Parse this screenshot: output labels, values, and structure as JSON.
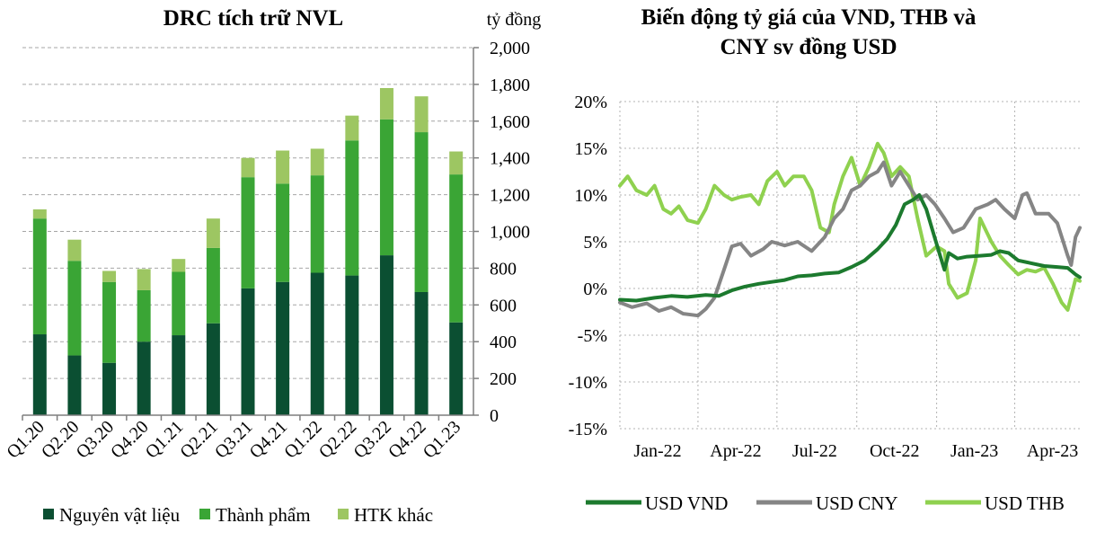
{
  "chart_data": [
    {
      "type": "bar",
      "stacked": true,
      "title": "DRC tích trữ NVL",
      "unit_label": "tỷ đồng",
      "categories": [
        "Q1.20",
        "Q2.20",
        "Q3.20",
        "Q4.20",
        "Q1.21",
        "Q2.21",
        "Q3.21",
        "Q4.21",
        "Q1.22",
        "Q2.22",
        "Q3.22",
        "Q4.22",
        "Q1.23"
      ],
      "series": [
        {
          "name": "Nguyên vật liệu",
          "color": "#0b4f32",
          "values": [
            440,
            325,
            285,
            400,
            435,
            500,
            690,
            725,
            775,
            760,
            870,
            670,
            505
          ]
        },
        {
          "name": "Thành phẩm",
          "color": "#3aa535",
          "values": [
            630,
            515,
            440,
            280,
            345,
            410,
            605,
            535,
            530,
            735,
            740,
            870,
            805
          ]
        },
        {
          "name": "HTK khác",
          "color": "#9dc662",
          "values": [
            50,
            115,
            60,
            115,
            70,
            160,
            105,
            180,
            145,
            135,
            170,
            195,
            125
          ]
        }
      ],
      "ylim": [
        0,
        2000
      ],
      "yticks": [
        "0",
        "200",
        "400",
        "600",
        "800",
        "1,000",
        "1,200",
        "1,400",
        "1,600",
        "1,800",
        "2,000"
      ],
      "grid": true,
      "legend_position": "bottom"
    },
    {
      "type": "line",
      "title_lines": [
        "Biến động tỷ giá của VND, THB và",
        "CNY sv đồng USD"
      ],
      "x_range": [
        "2022-01-01",
        "2023-06-15"
      ],
      "xtick_labels": [
        "Jan-22",
        "Apr-22",
        "Jul-22",
        "Oct-22",
        "Jan-23",
        "Apr-23"
      ],
      "xtick_dates": [
        "2022-01-01",
        "2022-04-01",
        "2022-07-01",
        "2022-10-01",
        "2023-01-01",
        "2023-04-01"
      ],
      "ylim": [
        -15,
        20
      ],
      "yticks": [
        "-15%",
        "-10%",
        "-5%",
        "0%",
        "5%",
        "10%",
        "15%",
        "20%"
      ],
      "grid": true,
      "legend_position": "bottom",
      "series": [
        {
          "name": "USD VND",
          "color": "#1c7a2e",
          "points": [
            [
              "2022-01-01",
              -1.2
            ],
            [
              "2022-01-20",
              -1.3
            ],
            [
              "2022-02-10",
              -1.0
            ],
            [
              "2022-03-01",
              -0.8
            ],
            [
              "2022-03-20",
              -0.9
            ],
            [
              "2022-04-10",
              -0.7
            ],
            [
              "2022-04-25",
              -0.8
            ],
            [
              "2022-05-10",
              -0.2
            ],
            [
              "2022-05-25",
              0.2
            ],
            [
              "2022-06-10",
              0.5
            ],
            [
              "2022-06-25",
              0.7
            ],
            [
              "2022-07-10",
              0.9
            ],
            [
              "2022-07-25",
              1.3
            ],
            [
              "2022-08-10",
              1.4
            ],
            [
              "2022-08-25",
              1.6
            ],
            [
              "2022-09-10",
              1.7
            ],
            [
              "2022-09-25",
              2.3
            ],
            [
              "2022-10-10",
              3.0
            ],
            [
              "2022-10-25",
              4.2
            ],
            [
              "2022-11-05",
              5.3
            ],
            [
              "2022-11-15",
              6.8
            ],
            [
              "2022-11-25",
              9.0
            ],
            [
              "2022-12-05",
              9.5
            ],
            [
              "2022-12-12",
              10.0
            ],
            [
              "2022-12-20",
              8.5
            ],
            [
              "2022-12-28",
              6.0
            ],
            [
              "2023-01-05",
              3.5
            ],
            [
              "2023-01-10",
              2.0
            ],
            [
              "2023-01-15",
              3.8
            ],
            [
              "2023-01-25",
              3.2
            ],
            [
              "2023-02-05",
              3.4
            ],
            [
              "2023-02-20",
              3.5
            ],
            [
              "2023-03-05",
              3.6
            ],
            [
              "2023-03-15",
              4.0
            ],
            [
              "2023-03-25",
              3.8
            ],
            [
              "2023-04-05",
              3.0
            ],
            [
              "2023-04-20",
              2.7
            ],
            [
              "2023-05-05",
              2.4
            ],
            [
              "2023-05-20",
              2.3
            ],
            [
              "2023-06-01",
              2.2
            ],
            [
              "2023-06-10",
              1.5
            ],
            [
              "2023-06-15",
              1.2
            ]
          ]
        },
        {
          "name": "USD CNY",
          "color": "#858585",
          "points": [
            [
              "2022-01-01",
              -1.5
            ],
            [
              "2022-01-15",
              -2.0
            ],
            [
              "2022-02-01",
              -1.6
            ],
            [
              "2022-02-15",
              -2.4
            ],
            [
              "2022-03-01",
              -2.0
            ],
            [
              "2022-03-15",
              -2.7
            ],
            [
              "2022-04-01",
              -2.9
            ],
            [
              "2022-04-10",
              -2.2
            ],
            [
              "2022-04-20",
              -1.0
            ],
            [
              "2022-05-01",
              2.0
            ],
            [
              "2022-05-10",
              4.5
            ],
            [
              "2022-05-20",
              4.8
            ],
            [
              "2022-06-01",
              3.5
            ],
            [
              "2022-06-15",
              4.2
            ],
            [
              "2022-06-25",
              5.0
            ],
            [
              "2022-07-10",
              4.6
            ],
            [
              "2022-07-25",
              5.0
            ],
            [
              "2022-08-10",
              4.0
            ],
            [
              "2022-08-25",
              5.5
            ],
            [
              "2022-09-05",
              7.5
            ],
            [
              "2022-09-15",
              8.5
            ],
            [
              "2022-09-25",
              10.5
            ],
            [
              "2022-10-05",
              11.0
            ],
            [
              "2022-10-15",
              12.0
            ],
            [
              "2022-10-25",
              12.5
            ],
            [
              "2022-11-01",
              13.5
            ],
            [
              "2022-11-10",
              11.0
            ],
            [
              "2022-11-20",
              12.5
            ],
            [
              "2022-11-30",
              11.0
            ],
            [
              "2022-12-10",
              9.5
            ],
            [
              "2022-12-20",
              10.0
            ],
            [
              "2022-12-30",
              9.0
            ],
            [
              "2023-01-10",
              7.5
            ],
            [
              "2023-01-20",
              6.0
            ],
            [
              "2023-02-01",
              6.5
            ],
            [
              "2023-02-15",
              8.5
            ],
            [
              "2023-03-01",
              9.0
            ],
            [
              "2023-03-10",
              9.5
            ],
            [
              "2023-03-20",
              8.5
            ],
            [
              "2023-04-01",
              7.5
            ],
            [
              "2023-04-10",
              10.0
            ],
            [
              "2023-04-15",
              10.2
            ],
            [
              "2023-04-25",
              8.0
            ],
            [
              "2023-05-10",
              8.0
            ],
            [
              "2023-05-20",
              7.0
            ],
            [
              "2023-06-01",
              3.5
            ],
            [
              "2023-06-05",
              2.5
            ],
            [
              "2023-06-10",
              5.5
            ],
            [
              "2023-06-15",
              6.5
            ]
          ]
        },
        {
          "name": "USD THB",
          "color": "#8fd14f",
          "points": [
            [
              "2022-01-01",
              11.0
            ],
            [
              "2022-01-10",
              12.0
            ],
            [
              "2022-01-20",
              10.5
            ],
            [
              "2022-02-01",
              10.0
            ],
            [
              "2022-02-10",
              11.0
            ],
            [
              "2022-02-20",
              8.5
            ],
            [
              "2022-03-01",
              8.0
            ],
            [
              "2022-03-10",
              8.8
            ],
            [
              "2022-03-20",
              7.3
            ],
            [
              "2022-04-01",
              7.0
            ],
            [
              "2022-04-10",
              8.5
            ],
            [
              "2022-04-20",
              11.0
            ],
            [
              "2022-05-01",
              10.0
            ],
            [
              "2022-05-10",
              9.5
            ],
            [
              "2022-05-20",
              9.8
            ],
            [
              "2022-06-01",
              10.0
            ],
            [
              "2022-06-10",
              9.0
            ],
            [
              "2022-06-20",
              11.5
            ],
            [
              "2022-07-01",
              12.5
            ],
            [
              "2022-07-10",
              11.0
            ],
            [
              "2022-07-20",
              12.0
            ],
            [
              "2022-08-01",
              12.0
            ],
            [
              "2022-08-10",
              10.5
            ],
            [
              "2022-08-20",
              6.5
            ],
            [
              "2022-08-30",
              6.0
            ],
            [
              "2022-09-05",
              9.0
            ],
            [
              "2022-09-15",
              12.0
            ],
            [
              "2022-09-25",
              14.0
            ],
            [
              "2022-10-05",
              11.0
            ],
            [
              "2022-10-15",
              13.0
            ],
            [
              "2022-10-25",
              15.5
            ],
            [
              "2022-11-01",
              14.5
            ],
            [
              "2022-11-10",
              12.0
            ],
            [
              "2022-11-20",
              13.0
            ],
            [
              "2022-11-30",
              12.0
            ],
            [
              "2022-12-10",
              7.5
            ],
            [
              "2022-12-20",
              3.5
            ],
            [
              "2023-01-01",
              4.5
            ],
            [
              "2023-01-10",
              4.0
            ],
            [
              "2023-01-15",
              0.5
            ],
            [
              "2023-01-25",
              -1.0
            ],
            [
              "2023-02-05",
              -0.5
            ],
            [
              "2023-02-15",
              3.0
            ],
            [
              "2023-02-20",
              7.5
            ],
            [
              "2023-03-05",
              5.0
            ],
            [
              "2023-03-15",
              3.5
            ],
            [
              "2023-03-25",
              2.5
            ],
            [
              "2023-04-05",
              1.5
            ],
            [
              "2023-04-15",
              2.0
            ],
            [
              "2023-04-25",
              1.8
            ],
            [
              "2023-05-05",
              2.2
            ],
            [
              "2023-05-15",
              0.5
            ],
            [
              "2023-05-25",
              -1.5
            ],
            [
              "2023-06-01",
              -2.3
            ],
            [
              "2023-06-10",
              1.0
            ],
            [
              "2023-06-15",
              0.8
            ]
          ]
        }
      ]
    }
  ]
}
